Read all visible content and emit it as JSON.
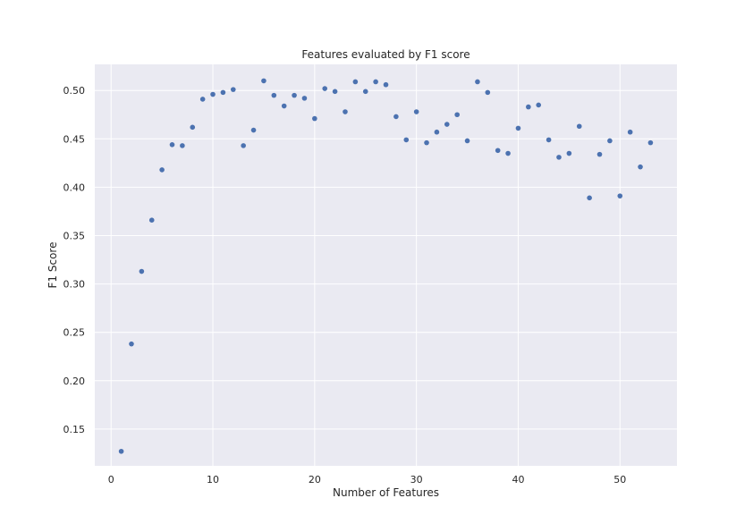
{
  "chart_data": {
    "type": "scatter",
    "title": "Features evaluated by F1 score",
    "xlabel": "Number of Features",
    "ylabel": "F1 Score",
    "xlim": [
      -1.6,
      55.6
    ],
    "ylim": [
      0.112,
      0.527
    ],
    "xticks": [
      0,
      10,
      20,
      30,
      40,
      50
    ],
    "yticks": [
      0.15,
      0.2,
      0.25,
      0.3,
      0.35,
      0.4,
      0.45,
      0.5
    ],
    "grid": true,
    "style": {
      "background": "#eaeaf2",
      "grid_color": "#ffffff",
      "marker_color": "#4c72b0"
    },
    "x": [
      1,
      2,
      3,
      4,
      5,
      6,
      7,
      8,
      9,
      10,
      11,
      12,
      13,
      14,
      15,
      16,
      17,
      18,
      19,
      20,
      21,
      22,
      23,
      24,
      25,
      26,
      27,
      28,
      29,
      30,
      31,
      32,
      33,
      34,
      35,
      36,
      37,
      38,
      39,
      40,
      41,
      42,
      43,
      44,
      45,
      46,
      47,
      48,
      49,
      50,
      51,
      52,
      53
    ],
    "y": [
      0.127,
      0.238,
      0.313,
      0.366,
      0.418,
      0.444,
      0.443,
      0.462,
      0.491,
      0.496,
      0.498,
      0.501,
      0.443,
      0.459,
      0.51,
      0.495,
      0.484,
      0.495,
      0.492,
      0.471,
      0.502,
      0.499,
      0.478,
      0.509,
      0.499,
      0.509,
      0.506,
      0.473,
      0.449,
      0.478,
      0.446,
      0.457,
      0.465,
      0.475,
      0.448,
      0.509,
      0.498,
      0.438,
      0.435,
      0.461,
      0.483,
      0.485,
      0.449,
      0.431,
      0.435,
      0.463,
      0.389,
      0.434,
      0.448,
      0.391,
      0.457,
      0.421,
      0.446
    ]
  }
}
